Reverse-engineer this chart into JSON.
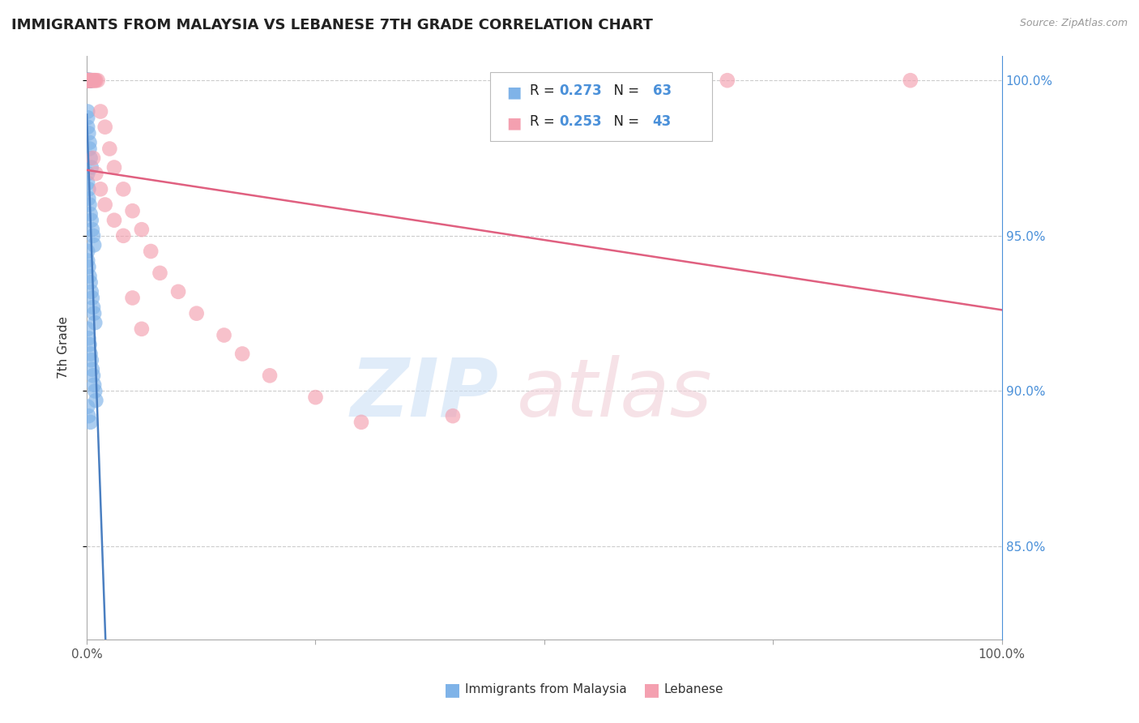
{
  "title": "IMMIGRANTS FROM MALAYSIA VS LEBANESE 7TH GRADE CORRELATION CHART",
  "source": "Source: ZipAtlas.com",
  "ylabel": "7th Grade",
  "xlim": [
    0.0,
    1.0
  ],
  "ylim": [
    0.82,
    1.008
  ],
  "yticks": [
    0.85,
    0.9,
    0.95,
    1.0
  ],
  "ytick_labels": [
    "85.0%",
    "90.0%",
    "95.0%",
    "100.0%"
  ],
  "grid_color": "#cccccc",
  "background_color": "#ffffff",
  "series1_color": "#7fb3e8",
  "series2_color": "#f4a0b0",
  "trendline1_color": "#4a7fc1",
  "trendline2_color": "#e06080",
  "R1": 0.273,
  "N1": 63,
  "R2": 0.253,
  "N2": 43,
  "series1_label": "Immigrants from Malaysia",
  "series2_label": "Lebanese",
  "blue_x": [
    0.001,
    0.001,
    0.001,
    0.001,
    0.001,
    0.001,
    0.001,
    0.001,
    0.001,
    0.002,
    0.002,
    0.002,
    0.002,
    0.002,
    0.003,
    0.003,
    0.003,
    0.003,
    0.004,
    0.004,
    0.004,
    0.005,
    0.001,
    0.001,
    0.001,
    0.002,
    0.003,
    0.003,
    0.004,
    0.005,
    0.001,
    0.001,
    0.002,
    0.002,
    0.003,
    0.004,
    0.005,
    0.006,
    0.007,
    0.008,
    0.001,
    0.001,
    0.002,
    0.003,
    0.004,
    0.005,
    0.006,
    0.007,
    0.008,
    0.009,
    0.001,
    0.002,
    0.003,
    0.004,
    0.005,
    0.006,
    0.007,
    0.008,
    0.009,
    0.01,
    0.001,
    0.002,
    0.004
  ],
  "blue_y": [
    1.0,
    1.0,
    1.0,
    1.0,
    1.0,
    1.0,
    1.0,
    1.0,
    1.0,
    1.0,
    1.0,
    1.0,
    1.0,
    1.0,
    1.0,
    1.0,
    1.0,
    1.0,
    1.0,
    1.0,
    1.0,
    1.0,
    0.99,
    0.988,
    0.985,
    0.983,
    0.98,
    0.978,
    0.975,
    0.972,
    0.97,
    0.967,
    0.965,
    0.962,
    0.96,
    0.957,
    0.955,
    0.952,
    0.95,
    0.947,
    0.945,
    0.942,
    0.94,
    0.937,
    0.935,
    0.932,
    0.93,
    0.927,
    0.925,
    0.922,
    0.92,
    0.917,
    0.915,
    0.912,
    0.91,
    0.907,
    0.905,
    0.902,
    0.9,
    0.897,
    0.895,
    0.892,
    0.89
  ],
  "pink_x": [
    0.001,
    0.001,
    0.001,
    0.001,
    0.002,
    0.002,
    0.003,
    0.003,
    0.004,
    0.005,
    0.006,
    0.007,
    0.008,
    0.009,
    0.01,
    0.012,
    0.015,
    0.02,
    0.025,
    0.03,
    0.04,
    0.05,
    0.06,
    0.07,
    0.08,
    0.1,
    0.12,
    0.15,
    0.17,
    0.2,
    0.007,
    0.01,
    0.015,
    0.02,
    0.03,
    0.04,
    0.05,
    0.06,
    0.25,
    0.3,
    0.4,
    0.7,
    0.9
  ],
  "pink_y": [
    1.0,
    1.0,
    1.0,
    1.0,
    1.0,
    1.0,
    1.0,
    1.0,
    1.0,
    1.0,
    1.0,
    1.0,
    1.0,
    1.0,
    1.0,
    1.0,
    0.99,
    0.985,
    0.978,
    0.972,
    0.965,
    0.958,
    0.952,
    0.945,
    0.938,
    0.932,
    0.925,
    0.918,
    0.912,
    0.905,
    0.975,
    0.97,
    0.965,
    0.96,
    0.955,
    0.95,
    0.93,
    0.92,
    0.898,
    0.89,
    0.892,
    1.0,
    1.0
  ]
}
